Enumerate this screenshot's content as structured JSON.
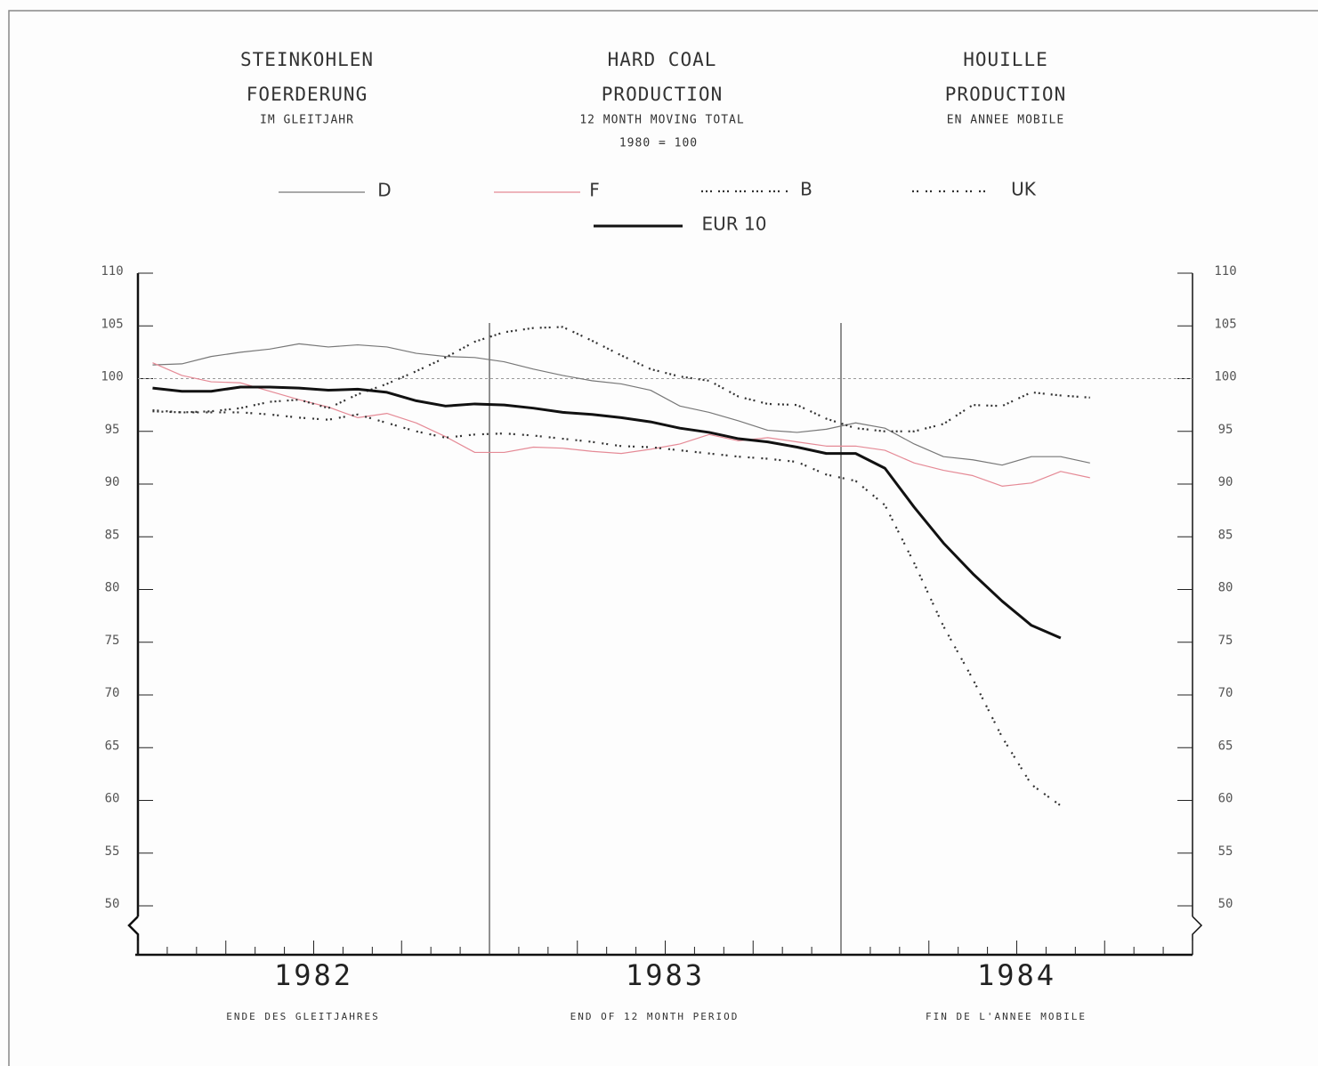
{
  "chart_data": {
    "type": "line",
    "title_columns": [
      {
        "lines": [
          "STEINKOHLEN",
          "FOERDERUNG"
        ],
        "subtitle": "IM GLEITJAHR"
      },
      {
        "lines": [
          "HARD COAL",
          "PRODUCTION"
        ],
        "subtitle": "12 MONTH MOVING TOTAL",
        "note": "1980 = 100"
      },
      {
        "lines": [
          "HOUILLE",
          "PRODUCTION"
        ],
        "subtitle": "EN ANNEE MOBILE"
      }
    ],
    "categories": [
      null,
      null,
      null,
      null,
      null,
      null,
      null,
      null,
      null,
      null,
      null,
      null,
      null,
      null,
      null,
      null,
      null,
      null,
      null,
      null,
      null,
      null,
      null,
      null,
      null,
      null,
      null,
      null,
      null,
      null,
      null,
      null,
      null,
      null,
      null,
      null
    ],
    "x_groups": [
      "1982",
      "1983",
      "1984"
    ],
    "x_labels": [
      "ENDE DES GLEITJAHRES",
      "END OF 12 MONTH PERIOD",
      "FIN DE L'ANNEE MOBILE"
    ],
    "series": [
      {
        "name": "D",
        "color": "#777777",
        "style": "thin",
        "values": [
          101.3,
          101.4,
          102.1,
          102.5,
          102.8,
          103.3,
          103.0,
          103.2,
          103.0,
          102.4,
          102.1,
          102.0,
          101.6,
          100.9,
          100.3,
          99.8,
          99.5,
          98.9,
          97.4,
          96.8,
          96.0,
          95.1,
          94.9,
          95.2,
          95.8,
          95.3,
          93.8,
          92.6,
          92.3,
          91.8,
          92.6,
          92.6,
          92.0,
          null,
          null,
          null
        ]
      },
      {
        "name": "F",
        "color": "#e58a96",
        "style": "thin",
        "values": [
          101.5,
          100.3,
          99.7,
          99.6,
          98.8,
          98.0,
          97.3,
          96.3,
          96.7,
          95.8,
          94.5,
          93.0,
          93.0,
          93.5,
          93.4,
          93.1,
          92.9,
          93.3,
          93.8,
          94.7,
          94.1,
          94.4,
          94.0,
          93.6,
          93.6,
          93.2,
          92.0,
          91.3,
          90.8,
          89.8,
          90.1,
          91.2,
          90.6,
          null,
          null,
          null
        ]
      },
      {
        "name": "B",
        "color": "#333333",
        "style": "dotted",
        "values": [
          96.9,
          96.8,
          96.9,
          97.2,
          97.8,
          98.0,
          97.2,
          98.5,
          99.5,
          100.7,
          102.0,
          103.5,
          104.4,
          104.8,
          104.9,
          103.6,
          102.2,
          100.9,
          100.2,
          99.8,
          98.3,
          97.6,
          97.5,
          96.2,
          95.3,
          95.0,
          95.0,
          95.7,
          97.5,
          97.4,
          98.7,
          98.4,
          98.2,
          null,
          null,
          null
        ]
      },
      {
        "name": "UK",
        "color": "#333333",
        "style": "sparse-dotted",
        "values": [
          97.0,
          96.8,
          96.8,
          96.8,
          96.6,
          96.3,
          96.1,
          96.6,
          95.8,
          95.0,
          94.4,
          94.7,
          94.8,
          94.6,
          94.3,
          94.0,
          93.6,
          93.5,
          93.2,
          92.9,
          92.6,
          92.4,
          92.1,
          90.9,
          90.3,
          88.0,
          82.5,
          76.5,
          71.5,
          66.0,
          61.5,
          59.5,
          null,
          null,
          null,
          null
        ]
      },
      {
        "name": "EUR 10",
        "color": "#111111",
        "style": "thick",
        "values": [
          99.1,
          98.8,
          98.8,
          99.2,
          99.2,
          99.1,
          98.9,
          99.0,
          98.7,
          97.9,
          97.4,
          97.6,
          97.5,
          97.2,
          96.8,
          96.6,
          96.3,
          95.9,
          95.3,
          94.9,
          94.3,
          94.0,
          93.5,
          92.9,
          92.9,
          91.5,
          87.8,
          84.4,
          81.5,
          78.9,
          76.6,
          75.4,
          null,
          null,
          null,
          null
        ]
      }
    ],
    "ylim": [
      50,
      110
    ],
    "yticks": [
      50,
      55,
      60,
      65,
      70,
      75,
      80,
      85,
      90,
      95,
      100,
      105,
      110
    ],
    "reference_line": 100
  }
}
